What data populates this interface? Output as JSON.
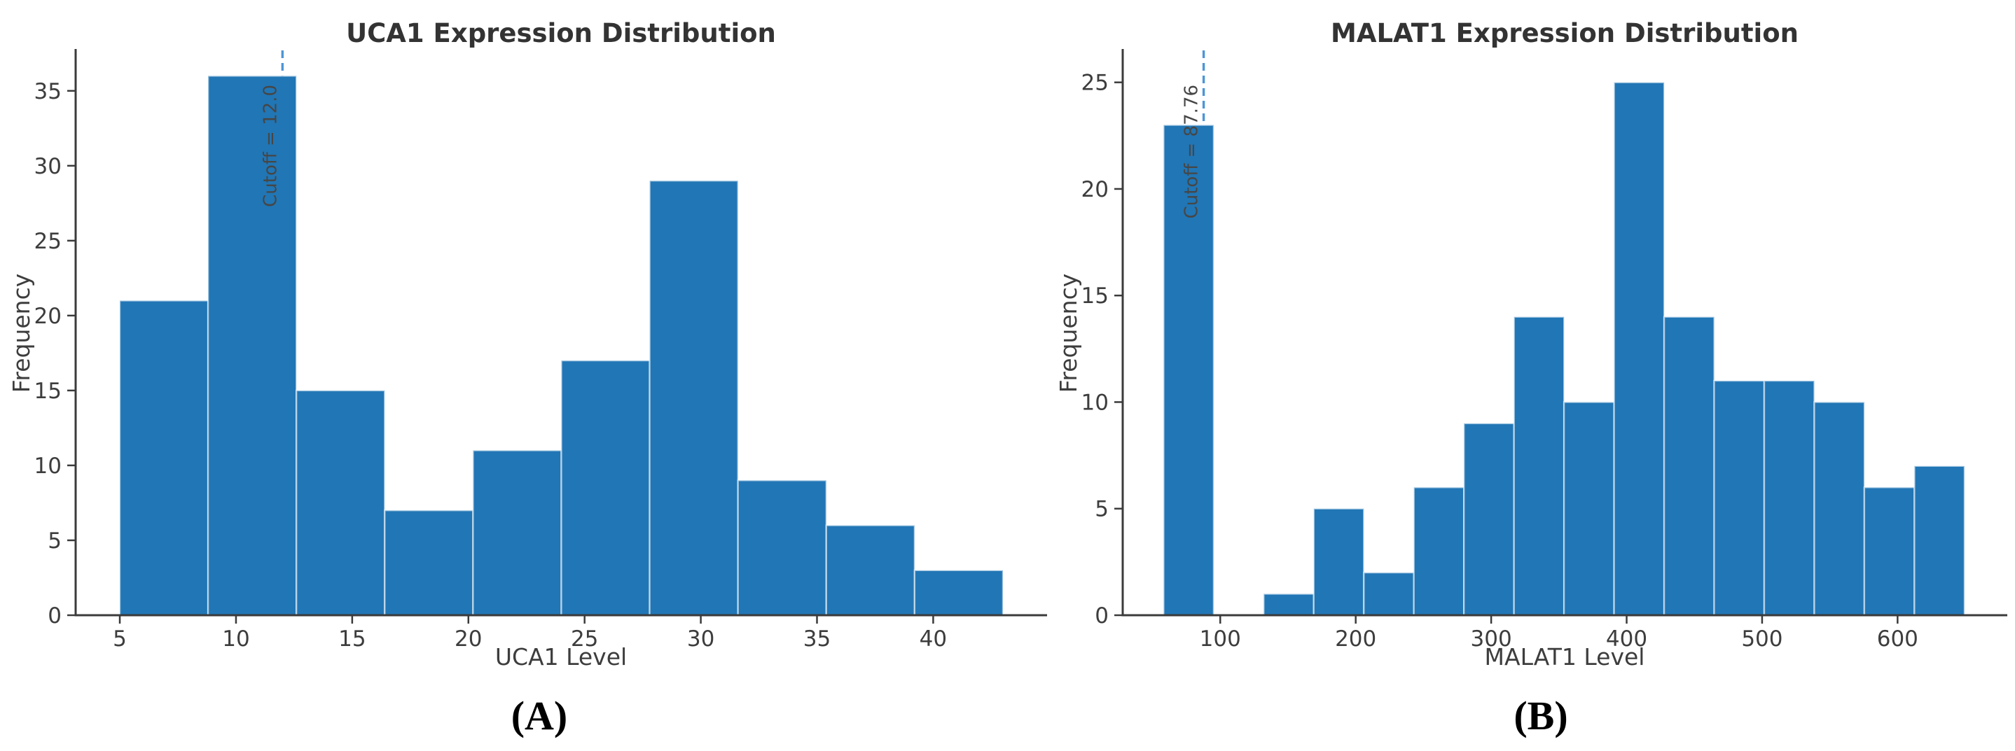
{
  "figure": {
    "background": "#ffffff",
    "bar_color": "#2176b5",
    "bar_edge_color": "rgba(255,255,255,0.55)",
    "cutoff_line_color": "#4e95d5",
    "axis_color": "#3b3b3b",
    "tick_text_color": "#3d3d3d",
    "title_color": "#333333"
  },
  "chart_data": [
    {
      "type": "bar",
      "subtype": "histogram",
      "title": "UCA1 Expression Distribution",
      "xlabel": "UCA1 Level",
      "ylabel": "Frequency",
      "caption": "(A)",
      "bin_edges": [
        5.0,
        8.8,
        12.6,
        16.4,
        20.2,
        24.0,
        27.8,
        31.6,
        35.4,
        39.2,
        43.0
      ],
      "counts": [
        21,
        36,
        15,
        7,
        11,
        17,
        29,
        9,
        6,
        3
      ],
      "cutoff_value": 12.0,
      "cutoff_label": "Cutoff = 12.0",
      "xticks": [
        5,
        10,
        15,
        20,
        25,
        30,
        35,
        40
      ],
      "yticks": [
        0,
        5,
        10,
        15,
        20,
        25,
        30,
        35
      ],
      "xlim": [
        3.1,
        44.9
      ],
      "ylim": [
        0,
        37.7
      ],
      "grid": false,
      "legend": "none"
    },
    {
      "type": "bar",
      "subtype": "histogram",
      "title": "MALAT1 Expression Distribution",
      "xlabel": "MALAT1 Level",
      "ylabel": "Frequency",
      "caption": "(B)",
      "bin_edges": [
        58.2,
        95.15,
        132.1,
        169.05,
        206.0,
        242.95,
        279.9,
        316.85,
        353.8,
        390.75,
        427.7,
        464.65,
        501.6,
        538.55,
        575.5,
        612.45,
        649.4
      ],
      "counts": [
        23,
        0,
        1,
        5,
        2,
        6,
        9,
        14,
        10,
        25,
        14,
        11,
        11,
        10,
        6,
        7
      ],
      "cutoff_value": 87.76,
      "cutoff_label": "Cutoff = 87.76",
      "xticks": [
        100,
        200,
        300,
        400,
        500,
        600
      ],
      "yticks": [
        0,
        5,
        10,
        15,
        20,
        25
      ],
      "xlim": [
        28,
        681
      ],
      "ylim": [
        0,
        26.5
      ],
      "grid": false,
      "legend": "none"
    }
  ]
}
